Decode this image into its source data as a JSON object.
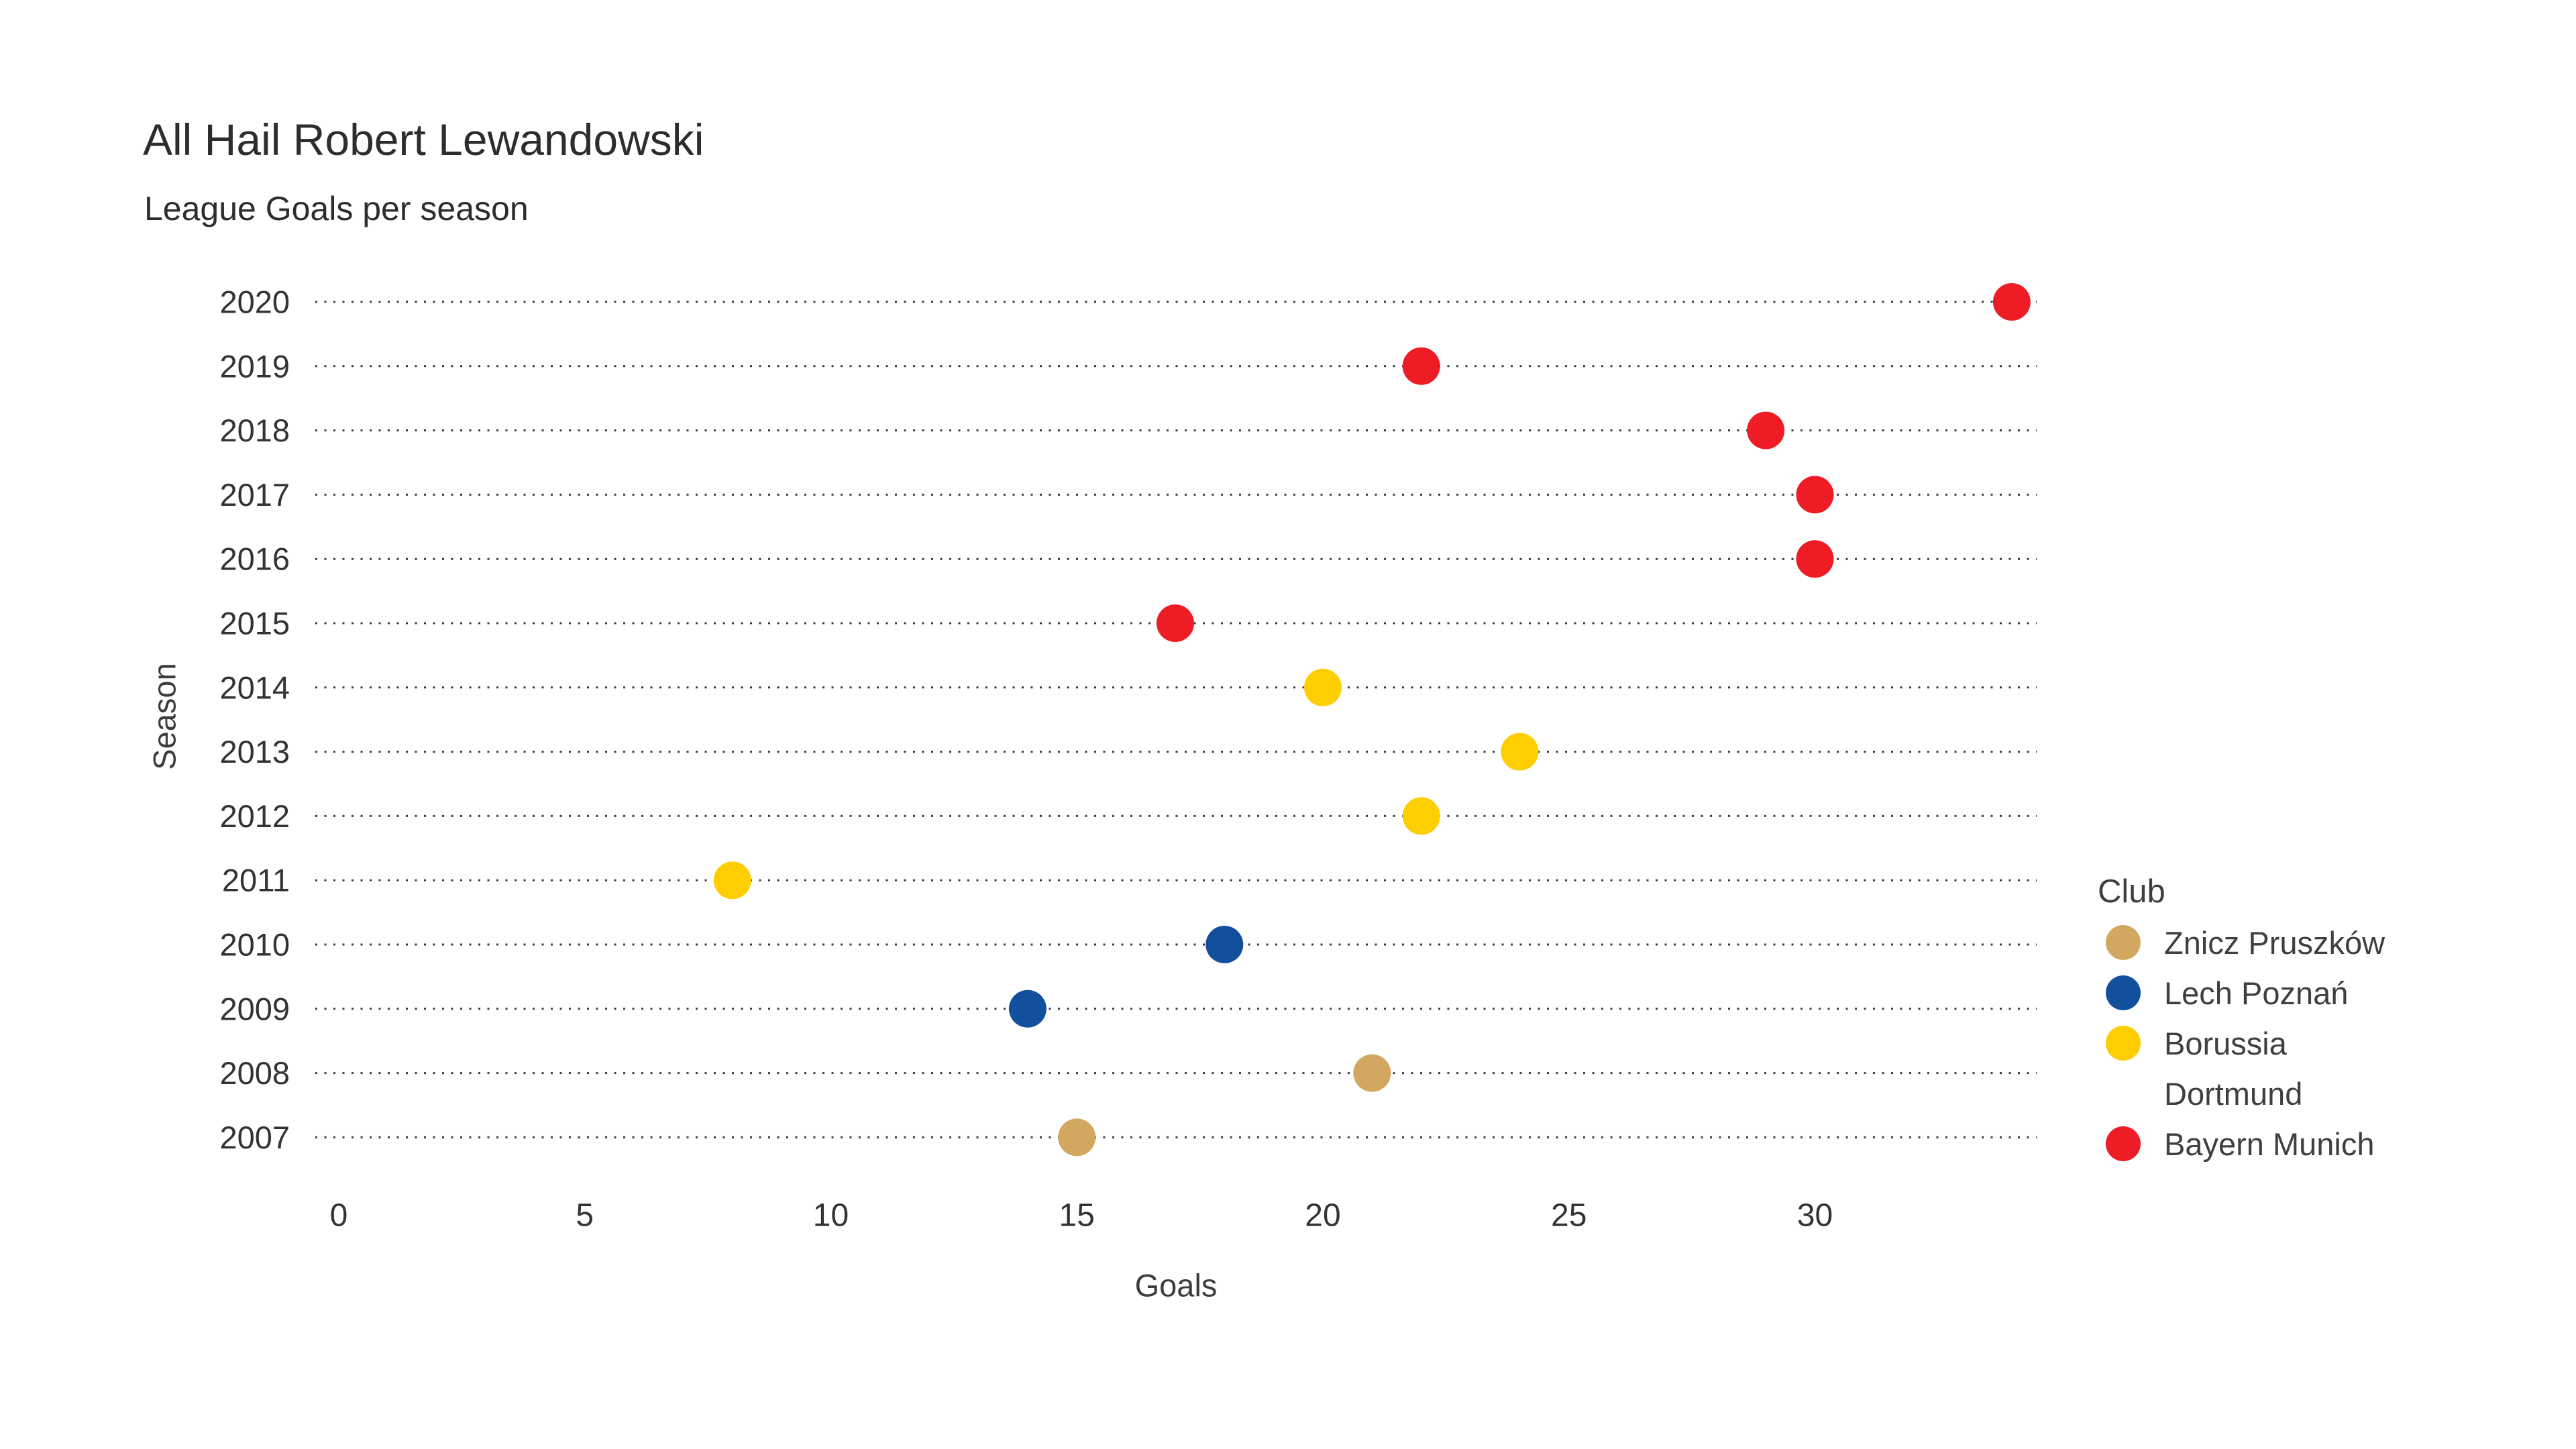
{
  "title": "All Hail Robert Lewandowski",
  "subtitle": "League Goals per season",
  "legend": {
    "title": "Club",
    "items": [
      {
        "label": "Znicz Pruszków",
        "color": "#d2a75f"
      },
      {
        "label": "Lech Poznań",
        "color": "#12509e"
      },
      {
        "label": "Borussia Dortmund",
        "color": "#ffce00"
      },
      {
        "label": "Bayern Munich",
        "color": "#ee1c25"
      }
    ]
  },
  "chart_data": {
    "type": "scatter",
    "title": "All Hail Robert Lewandowski",
    "subtitle": "League Goals per season",
    "xlabel": "Goals",
    "ylabel": "Season",
    "x_ticks": [
      0,
      5,
      10,
      15,
      20,
      25,
      30
    ],
    "xlim": [
      0,
      34.5
    ],
    "grid": "horizontal-dotted",
    "legend_position": "right",
    "categories": [
      "2020",
      "2019",
      "2018",
      "2017",
      "2016",
      "2015",
      "2014",
      "2013",
      "2012",
      "2011",
      "2010",
      "2009",
      "2008",
      "2007"
    ],
    "series": [
      {
        "name": "Znicz Pruszków",
        "color": "#d2a75f",
        "points": [
          {
            "season": "2007",
            "goals": 15
          },
          {
            "season": "2008",
            "goals": 21
          }
        ]
      },
      {
        "name": "Lech Poznań",
        "color": "#12509e",
        "points": [
          {
            "season": "2009",
            "goals": 14
          },
          {
            "season": "2010",
            "goals": 18
          }
        ]
      },
      {
        "name": "Borussia Dortmund",
        "color": "#ffce00",
        "points": [
          {
            "season": "2011",
            "goals": 8
          },
          {
            "season": "2012",
            "goals": 22
          },
          {
            "season": "2013",
            "goals": 24
          },
          {
            "season": "2014",
            "goals": 20
          }
        ]
      },
      {
        "name": "Bayern Munich",
        "color": "#ee1c25",
        "points": [
          {
            "season": "2015",
            "goals": 17
          },
          {
            "season": "2016",
            "goals": 30
          },
          {
            "season": "2017",
            "goals": 30
          },
          {
            "season": "2018",
            "goals": 29
          },
          {
            "season": "2019",
            "goals": 22
          },
          {
            "season": "2020",
            "goals": 34
          }
        ]
      }
    ]
  }
}
